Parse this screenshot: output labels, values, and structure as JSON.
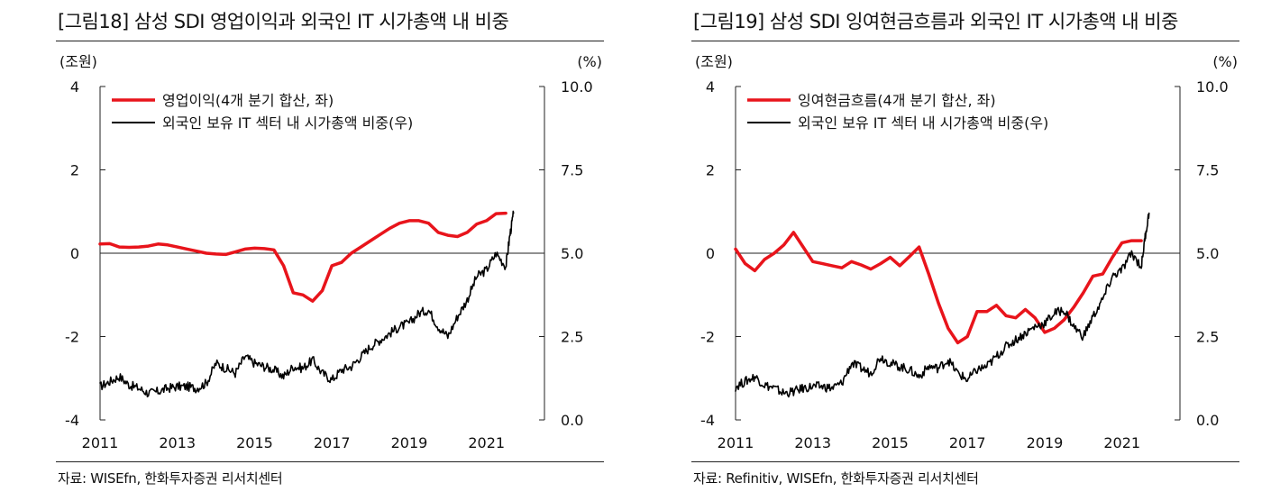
{
  "charts": [
    {
      "title": "[그림18]  삼성 SDI 영업이익과 외국인 IT 시가총액 내 비중",
      "source": "자료: WISEfn, 한화투자증권 리서치센터"
    },
    {
      "title": "[그림19]  삼성 SDI 잉여현금흐름과 외국인 IT 시가총액 내 비중",
      "source": "자료: Refinitiv, WISEfn, 한화투자증권 리서치센터"
    }
  ],
  "colors": {
    "primary_series": "#e8141b",
    "secondary_series": "#000000",
    "axis": "#222222"
  },
  "chart_data": [
    {
      "type": "line",
      "title": "[그림18]  삼성 SDI 영업이익과 외국인 IT 시가총액 내 비중",
      "y_left_unit": "(조원)",
      "y_right_unit": "(%)",
      "y_left_ticks": [
        "4",
        "2",
        "0",
        "-2",
        "-4"
      ],
      "y_right_ticks": [
        "10.0",
        "7.5",
        "5.0",
        "2.5",
        "0.0"
      ],
      "x_ticks": [
        "2011",
        "2013",
        "2015",
        "2017",
        "2019",
        "2021"
      ],
      "x_range": [
        2011,
        2022.5
      ],
      "y_left_range": [
        -4,
        4
      ],
      "y_right_range": [
        0,
        10
      ],
      "legend_position": "top-left",
      "grid": false,
      "series": [
        {
          "name": "영업이익(4개 분기 합산, 좌)",
          "axis": "left",
          "color": "#e8141b",
          "x": [
            2011.0,
            2011.25,
            2011.5,
            2011.75,
            2012.0,
            2012.25,
            2012.5,
            2012.75,
            2013.0,
            2013.25,
            2013.5,
            2013.75,
            2014.0,
            2014.25,
            2014.5,
            2014.75,
            2015.0,
            2015.25,
            2015.5,
            2015.75,
            2016.0,
            2016.25,
            2016.5,
            2016.75,
            2017.0,
            2017.25,
            2017.5,
            2017.75,
            2018.0,
            2018.25,
            2018.5,
            2018.75,
            2019.0,
            2019.25,
            2019.5,
            2019.75,
            2020.0,
            2020.25,
            2020.5,
            2020.75,
            2021.0,
            2021.25,
            2021.5
          ],
          "y": [
            0.22,
            0.23,
            0.15,
            0.14,
            0.15,
            0.17,
            0.22,
            0.2,
            0.15,
            0.1,
            0.05,
            0.0,
            -0.02,
            -0.03,
            0.03,
            0.1,
            0.12,
            0.11,
            0.08,
            -0.3,
            -0.95,
            -1.0,
            -1.15,
            -0.9,
            -0.3,
            -0.22,
            0.0,
            0.15,
            0.3,
            0.45,
            0.6,
            0.72,
            0.78,
            0.78,
            0.72,
            0.5,
            0.43,
            0.4,
            0.5,
            0.7,
            0.78,
            0.95,
            0.96
          ]
        },
        {
          "name": "외국인 보유 IT 섹터 내 시가총액 비중(우)",
          "axis": "right",
          "color": "#000000",
          "x": [
            2011.0,
            2011.25,
            2011.5,
            2011.75,
            2012.0,
            2012.25,
            2012.5,
            2012.75,
            2013.0,
            2013.25,
            2013.5,
            2013.75,
            2014.0,
            2014.25,
            2014.5,
            2014.75,
            2015.0,
            2015.25,
            2015.5,
            2015.75,
            2016.0,
            2016.25,
            2016.5,
            2016.75,
            2017.0,
            2017.25,
            2017.5,
            2017.75,
            2018.0,
            2018.25,
            2018.5,
            2018.75,
            2019.0,
            2019.25,
            2019.5,
            2019.75,
            2020.0,
            2020.25,
            2020.5,
            2020.75,
            2021.0,
            2021.25,
            2021.5,
            2021.6,
            2021.7
          ],
          "y": [
            1.0,
            1.15,
            1.3,
            1.05,
            0.95,
            0.8,
            0.85,
            0.95,
            1.0,
            1.0,
            0.95,
            1.1,
            1.7,
            1.55,
            1.4,
            1.9,
            1.7,
            1.6,
            1.5,
            1.3,
            1.6,
            1.55,
            1.8,
            1.4,
            1.2,
            1.5,
            1.6,
            1.9,
            2.2,
            2.4,
            2.6,
            2.8,
            2.9,
            3.2,
            3.3,
            2.8,
            2.5,
            3.1,
            3.6,
            4.3,
            4.5,
            5.0,
            4.6,
            5.5,
            6.2
          ]
        }
      ]
    },
    {
      "type": "line",
      "title": "[그림19]  삼성 SDI 잉여현금흐름과 외국인 IT 시가총액 내 비중",
      "y_left_unit": "(조원)",
      "y_right_unit": "(%)",
      "y_left_ticks": [
        "4",
        "2",
        "0",
        "-2",
        "-4"
      ],
      "y_right_ticks": [
        "10.0",
        "7.5",
        "5.0",
        "2.5",
        "0.0"
      ],
      "x_ticks": [
        "2011",
        "2013",
        "2015",
        "2017",
        "2019",
        "2021"
      ],
      "x_range": [
        2011,
        2022.5
      ],
      "y_left_range": [
        -4,
        4
      ],
      "y_right_range": [
        0,
        10
      ],
      "legend_position": "top-left",
      "grid": false,
      "series": [
        {
          "name": "잉여현금흐름(4개 분기 합산, 좌)",
          "axis": "left",
          "color": "#e8141b",
          "x": [
            2011.0,
            2011.25,
            2011.5,
            2011.75,
            2012.0,
            2012.25,
            2012.5,
            2012.75,
            2013.0,
            2013.25,
            2013.5,
            2013.75,
            2014.0,
            2014.25,
            2014.5,
            2014.75,
            2015.0,
            2015.25,
            2015.5,
            2015.75,
            2016.0,
            2016.25,
            2016.5,
            2016.75,
            2017.0,
            2017.25,
            2017.5,
            2017.75,
            2018.0,
            2018.25,
            2018.5,
            2018.75,
            2019.0,
            2019.25,
            2019.5,
            2019.75,
            2020.0,
            2020.25,
            2020.5,
            2020.75,
            2021.0,
            2021.25,
            2021.5
          ],
          "y": [
            0.1,
            -0.25,
            -0.42,
            -0.15,
            0.0,
            0.2,
            0.5,
            0.15,
            -0.2,
            -0.25,
            -0.3,
            -0.35,
            -0.2,
            -0.28,
            -0.38,
            -0.25,
            -0.1,
            -0.3,
            -0.08,
            0.15,
            -0.5,
            -1.2,
            -1.8,
            -2.15,
            -2.0,
            -1.4,
            -1.4,
            -1.25,
            -1.5,
            -1.55,
            -1.35,
            -1.55,
            -1.9,
            -1.8,
            -1.6,
            -1.3,
            -0.95,
            -0.55,
            -0.5,
            -0.1,
            0.25,
            0.3,
            0.3
          ]
        },
        {
          "name": "외국인 보유 IT 섹터 내 시가총액 비중(우)",
          "axis": "right",
          "color": "#000000",
          "x": [
            2011.0,
            2011.25,
            2011.5,
            2011.75,
            2012.0,
            2012.25,
            2012.5,
            2012.75,
            2013.0,
            2013.25,
            2013.5,
            2013.75,
            2014.0,
            2014.25,
            2014.5,
            2014.75,
            2015.0,
            2015.25,
            2015.5,
            2015.75,
            2016.0,
            2016.25,
            2016.5,
            2016.75,
            2017.0,
            2017.25,
            2017.5,
            2017.75,
            2018.0,
            2018.25,
            2018.5,
            2018.75,
            2019.0,
            2019.25,
            2019.5,
            2019.75,
            2020.0,
            2020.25,
            2020.5,
            2020.75,
            2021.0,
            2021.25,
            2021.5,
            2021.6,
            2021.7
          ],
          "y": [
            1.0,
            1.15,
            1.3,
            1.05,
            0.95,
            0.8,
            0.85,
            0.95,
            1.0,
            1.0,
            0.95,
            1.1,
            1.7,
            1.55,
            1.4,
            1.9,
            1.7,
            1.6,
            1.5,
            1.3,
            1.6,
            1.55,
            1.8,
            1.4,
            1.2,
            1.5,
            1.6,
            1.9,
            2.2,
            2.4,
            2.6,
            2.8,
            2.9,
            3.2,
            3.3,
            2.8,
            2.5,
            3.1,
            3.6,
            4.3,
            4.5,
            5.0,
            4.6,
            5.5,
            6.2
          ]
        }
      ]
    }
  ]
}
